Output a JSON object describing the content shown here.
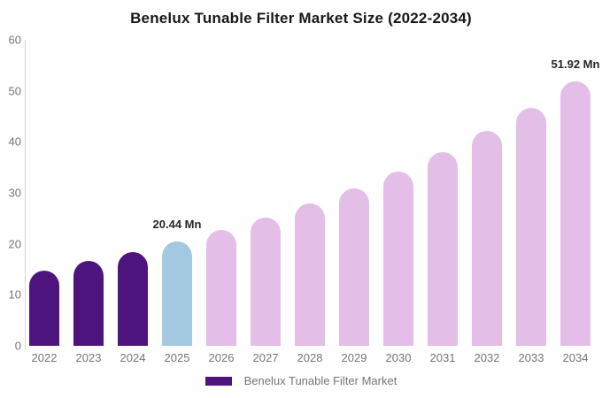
{
  "title": "Benelux Tunable Filter Market Size (2022-2034)",
  "legend": {
    "label": "Benelux Tunable Filter Market",
    "swatch_color": "#4e147e"
  },
  "colors": {
    "historical_bar": "#4e147e",
    "base_year_bar": "#a2c9e0",
    "forecast_bar": "#e3bee7",
    "axis_text": "#757575",
    "axis_line": "#d6d6d6",
    "title_text": "#181818",
    "data_label_text": "#262626",
    "background": "#ffffff"
  },
  "chart_data": {
    "type": "bar",
    "title": "Benelux Tunable Filter Market Size (2022-2034)",
    "categories": [
      "2022",
      "2023",
      "2024",
      "2025",
      "2026",
      "2027",
      "2028",
      "2029",
      "2030",
      "2031",
      "2032",
      "2033",
      "2034"
    ],
    "values": [
      14.8,
      16.6,
      18.4,
      20.44,
      22.7,
      25.1,
      27.9,
      30.9,
      34.2,
      38.0,
      42.2,
      46.7,
      51.92
    ],
    "unit": "Mn",
    "bar_roles": [
      "historical",
      "historical",
      "historical",
      "base_year",
      "forecast",
      "forecast",
      "forecast",
      "forecast",
      "forecast",
      "forecast",
      "forecast",
      "forecast",
      "forecast"
    ],
    "series_colors": {
      "historical": "#4e147e",
      "base_year": "#a2c9e0",
      "forecast": "#e3bee7"
    },
    "xlabel": "",
    "ylabel": "",
    "ylim": [
      0,
      60
    ],
    "yticks": [
      0,
      10,
      20,
      30,
      40,
      50,
      60
    ],
    "grid": false,
    "legend_position": "bottom",
    "legend_entries": [
      "Benelux Tunable Filter Market"
    ],
    "data_labels": [
      {
        "category": "2025",
        "text": "20.44 Mn"
      },
      {
        "category": "2034",
        "text": "51.92 Mn"
      }
    ]
  }
}
